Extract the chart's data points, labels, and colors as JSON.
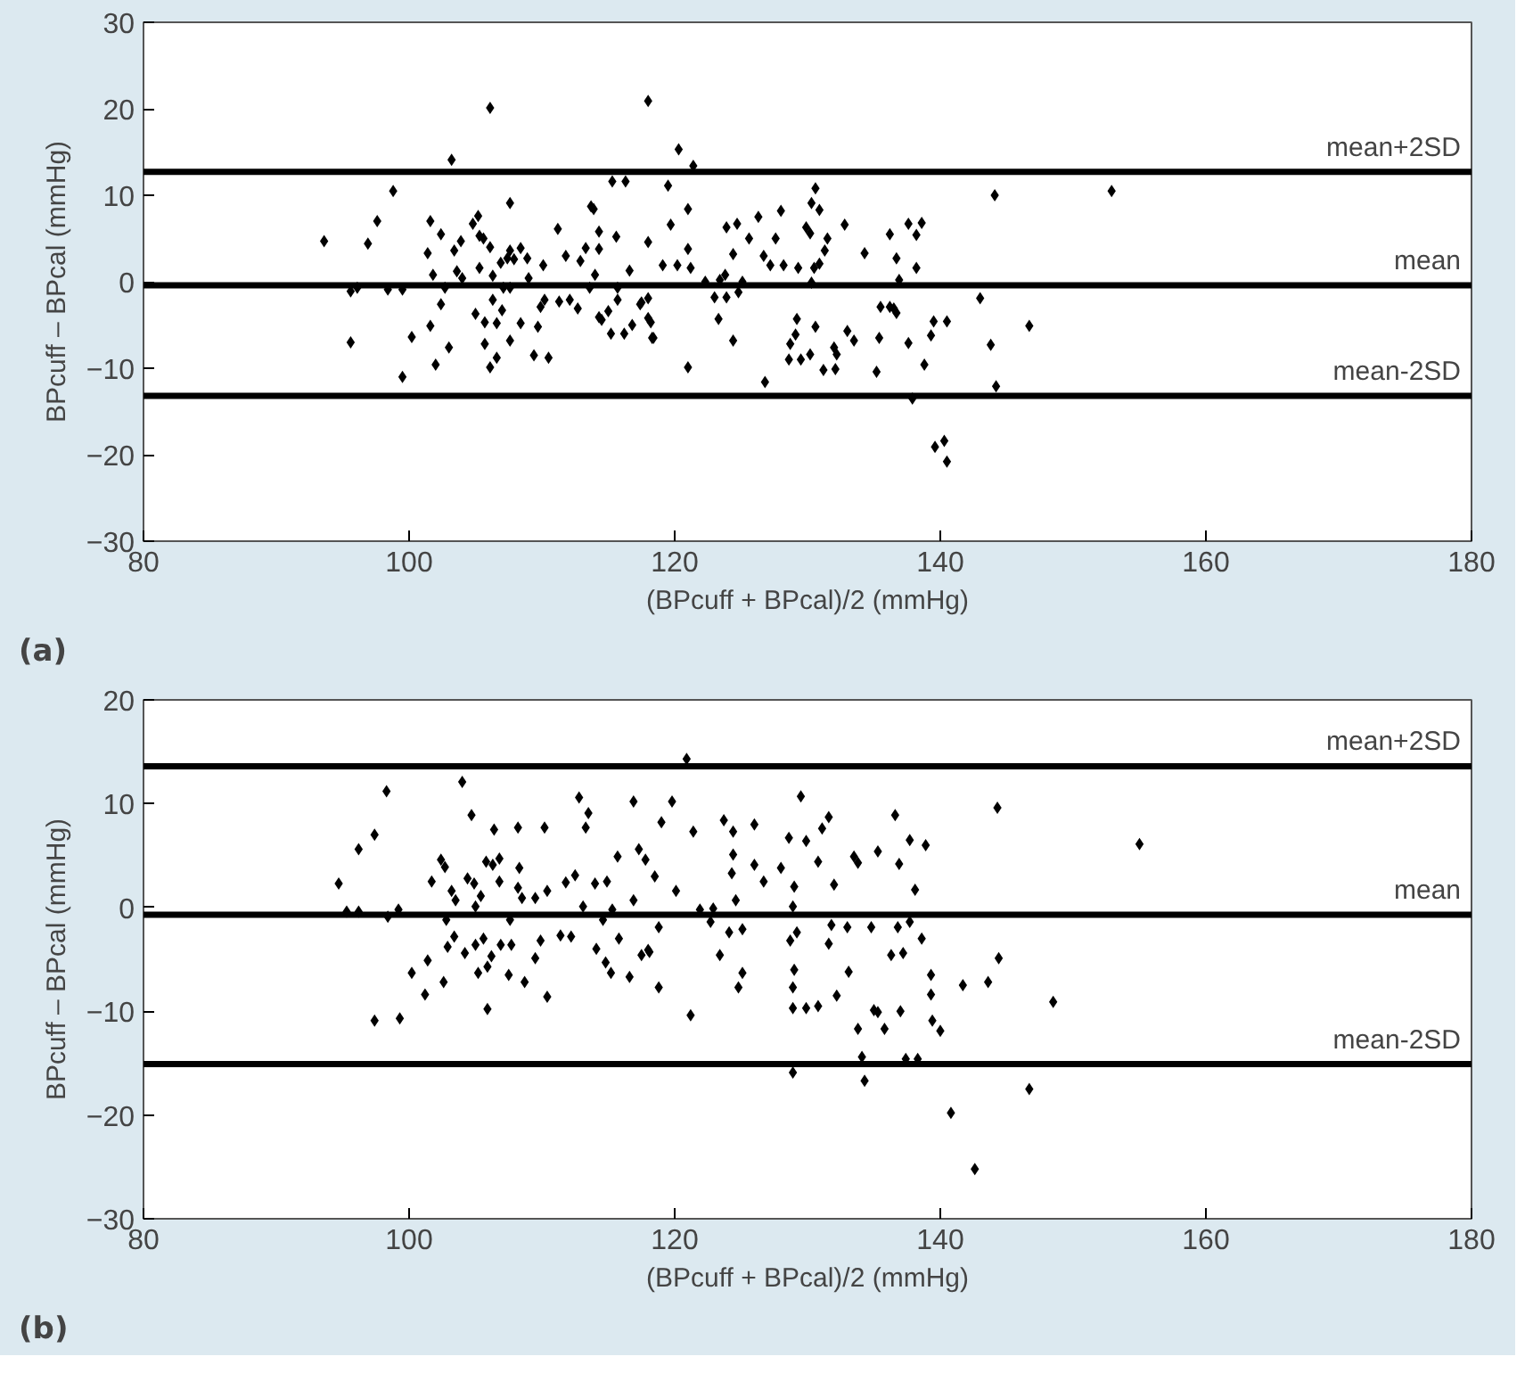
{
  "chart_data": [
    {
      "type": "scatter",
      "xlabel": "(BPcuff + BPcal)/2 (mmHg)",
      "ylabel": "BPcuff – BPcal (mmHg)",
      "annotations": [
        "(a)"
      ],
      "xlim": [
        80,
        180
      ],
      "xticks": [
        80,
        100,
        120,
        140,
        160,
        180
      ],
      "ylim": [
        -30,
        30
      ],
      "yticks": [
        -30,
        -20,
        -10,
        0,
        10,
        20,
        30
      ],
      "grid": false,
      "marker": "diamond",
      "ref_lines": [
        {
          "axis": "y",
          "value": 12.7,
          "label": "mean+2SD",
          "color": "#000000"
        },
        {
          "axis": "y",
          "value": -0.4,
          "label": "mean",
          "color": "#000000"
        },
        {
          "axis": "y",
          "value": -13.2,
          "label": "mean-2SD",
          "color": "#000000"
        }
      ],
      "series": [
        {
          "color": "#000000",
          "x": [
            93.6,
            95.6,
            96.1,
            95.6,
            96.9,
            97.6,
            98.8,
            98.4,
            99.5,
            99.5,
            100.2,
            101.6,
            101.4,
            101.8,
            101.6,
            102.0,
            102.4,
            102.4,
            102.7,
            103.0,
            103.2,
            103.4,
            103.6,
            103.9,
            104.0,
            104.8,
            105.2,
            105.3,
            105.0,
            105.3,
            105.6,
            105.7,
            105.7,
            106.1,
            106.1,
            106.1,
            106.3,
            106.3,
            106.6,
            106.6,
            106.9,
            107.1,
            107.0,
            107.4,
            107.6,
            107.6,
            107.6,
            107.6,
            107.9,
            108.4,
            108.4,
            108.9,
            109.0,
            109.4,
            109.7,
            109.9,
            110.1,
            110.2,
            110.5,
            111.2,
            111.3,
            111.8,
            112.1,
            112.7,
            112.9,
            113.3,
            113.7,
            113.9,
            113.6,
            114.0,
            114.3,
            114.3,
            114.3,
            114.5,
            115.0,
            115.2,
            115.3,
            115.6,
            115.7,
            115.7,
            116.3,
            116.2,
            116.6,
            116.8,
            117.5,
            118.0,
            118.0,
            118.2,
            118.4,
            118.0,
            117.4,
            118.0,
            118.3,
            119.5,
            119.7,
            119.1,
            120.2,
            120.3,
            121.4,
            121.0,
            121.0,
            121.2,
            121.0,
            122.3,
            123.0,
            123.3,
            123.4,
            123.8,
            123.9,
            123.9,
            124.4,
            124.4,
            124.7,
            124.8,
            125.1,
            125.6,
            126.3,
            126.7,
            126.8,
            127.2,
            127.6,
            128.0,
            128.2,
            128.6,
            128.7,
            129.1,
            129.2,
            129.3,
            129.5,
            129.9,
            130.2,
            130.2,
            130.3,
            130.5,
            130.6,
            130.6,
            130.3,
            130.9,
            130.9,
            131.3,
            131.5,
            131.2,
            132.0,
            132.2,
            132.1,
            132.8,
            133.0,
            133.5,
            134.3,
            135.2,
            135.4,
            135.5,
            136.2,
            136.2,
            136.5,
            136.7,
            136.7,
            136.9,
            137.6,
            137.6,
            137.9,
            138.2,
            138.2,
            138.6,
            138.8,
            139.3,
            139.5,
            139.6,
            140.3,
            140.5,
            140.5,
            143.0,
            143.8,
            144.1,
            144.2,
            146.7,
            152.9
          ],
          "values": [
            4.7,
            -1.1,
            -0.7,
            -7.0,
            4.4,
            7.0,
            10.5,
            -0.9,
            -0.9,
            -11.0,
            -6.4,
            7.0,
            3.3,
            0.8,
            -5.1,
            -9.6,
            5.5,
            -2.6,
            -0.7,
            -7.6,
            14.1,
            3.6,
            1.2,
            4.7,
            0.4,
            6.7,
            7.6,
            5.3,
            -3.7,
            1.6,
            5.0,
            -4.7,
            -7.2,
            20.1,
            4.0,
            -9.9,
            0.7,
            -2.1,
            -4.8,
            -8.8,
            2.2,
            -0.7,
            -3.3,
            2.7,
            9.1,
            3.6,
            -0.7,
            -6.8,
            2.6,
            3.9,
            -4.8,
            2.7,
            0.4,
            -8.5,
            -5.2,
            -2.9,
            1.9,
            -2.1,
            -8.8,
            6.1,
            -2.3,
            3.0,
            -2.1,
            -3.1,
            2.4,
            3.9,
            8.7,
            8.4,
            -0.7,
            0.8,
            5.8,
            3.8,
            -4.1,
            -4.4,
            -3.4,
            -6.0,
            11.6,
            5.2,
            -0.7,
            -2.1,
            11.6,
            -6.0,
            1.3,
            -5.0,
            -2.4,
            20.9,
            4.6,
            -4.7,
            -6.5,
            -1.9,
            -2.6,
            -4.2,
            -6.5,
            11.1,
            6.6,
            1.9,
            1.9,
            15.3,
            13.4,
            8.4,
            3.8,
            1.6,
            -9.9,
            0.0,
            -1.8,
            -4.3,
            0.2,
            0.8,
            -1.8,
            6.3,
            3.2,
            -6.8,
            6.7,
            -1.2,
            0.0,
            5.0,
            7.5,
            3.0,
            -11.6,
            1.9,
            5.0,
            8.2,
            1.9,
            -9.0,
            -7.2,
            -6.1,
            -4.3,
            1.6,
            -9.0,
            6.3,
            -8.4,
            5.6,
            -0.1,
            1.6,
            10.8,
            -5.2,
            9.1,
            8.3,
            2.1,
            3.6,
            5.0,
            -10.2,
            -7.6,
            -8.4,
            -10.1,
            6.6,
            -5.7,
            -6.8,
            3.3,
            -10.4,
            -6.5,
            -2.9,
            5.5,
            -2.9,
            -3.1,
            2.7,
            -3.6,
            0.2,
            6.7,
            -7.1,
            -13.5,
            5.4,
            1.6,
            6.8,
            -9.6,
            -6.2,
            -4.6,
            -19.1,
            -18.4,
            -20.8,
            -4.6,
            -1.9,
            -7.3,
            10.0,
            -12.1,
            -5.1,
            10.5
          ]
        }
      ]
    },
    {
      "type": "scatter",
      "xlabel": "(BPcuff + BPcal)/2 (mmHg)",
      "ylabel": "BPcuff – BPcal (mmHg)",
      "annotations": [
        "(b)"
      ],
      "xlim": [
        80,
        180
      ],
      "xticks": [
        80,
        100,
        120,
        140,
        160,
        180
      ],
      "ylim": [
        -30,
        20
      ],
      "yticks": [
        -30,
        -20,
        -10,
        0,
        10,
        20
      ],
      "grid": false,
      "marker": "diamond",
      "ref_lines": [
        {
          "axis": "y",
          "value": 13.6,
          "label": "mean+2SD",
          "color": "#000000"
        },
        {
          "axis": "y",
          "value": -0.7,
          "label": "mean",
          "color": "#000000"
        },
        {
          "axis": "y",
          "value": -15.1,
          "label": "mean-2SD",
          "color": "#000000"
        }
      ],
      "series": [
        {
          "color": "#000000",
          "x": [
            94.7,
            95.3,
            96.2,
            96.2,
            97.4,
            97.4,
            98.3,
            98.4,
            99.2,
            99.3,
            100.2,
            101.2,
            101.4,
            101.7,
            102.4,
            102.6,
            102.7,
            102.8,
            102.9,
            103.2,
            103.4,
            103.5,
            104.0,
            104.2,
            104.4,
            104.7,
            104.9,
            105.0,
            105.0,
            105.2,
            105.4,
            105.6,
            105.8,
            105.9,
            105.9,
            106.2,
            106.3,
            106.4,
            106.8,
            106.8,
            106.9,
            107.5,
            107.6,
            107.7,
            108.2,
            108.2,
            108.3,
            108.5,
            108.7,
            109.5,
            109.5,
            109.9,
            110.2,
            110.4,
            110.4,
            111.4,
            111.8,
            112.2,
            112.5,
            112.8,
            113.1,
            113.3,
            113.5,
            114.0,
            114.1,
            114.6,
            114.8,
            114.9,
            115.2,
            115.3,
            115.7,
            115.8,
            116.6,
            116.9,
            116.9,
            117.3,
            117.5,
            117.8,
            118.1,
            120.9,
            119.8,
            119.0,
            118.5,
            118.8,
            118.8,
            118.0,
            120.1,
            121.2,
            121.4,
            121.9,
            122.7,
            122.9,
            123.4,
            123.7,
            124.1,
            124.3,
            124.4,
            124.4,
            124.6,
            124.8,
            125.1,
            125.1,
            126.0,
            126.0,
            126.7,
            128.0,
            128.6,
            128.7,
            128.9,
            128.9,
            128.9,
            128.9,
            129.0,
            129.2,
            129.0,
            129.5,
            129.9,
            129.9,
            130.8,
            130.8,
            131.1,
            131.6,
            131.6,
            131.8,
            132.0,
            132.2,
            133.0,
            133.1,
            133.5,
            133.8,
            133.8,
            134.1,
            134.3,
            134.8,
            135.0,
            135.3,
            135.3,
            135.8,
            136.3,
            136.6,
            136.8,
            136.9,
            137.0,
            137.2,
            137.4,
            137.7,
            137.7,
            138.1,
            138.3,
            138.6,
            138.9,
            139.3,
            139.3,
            139.4,
            140.0,
            140.8,
            141.7,
            142.6,
            143.6,
            144.3,
            144.4,
            146.7,
            148.5,
            155.0
          ],
          "values": [
            2.3,
            -0.4,
            -0.4,
            5.6,
            7.0,
            -10.9,
            11.2,
            -0.9,
            -0.2,
            -10.7,
            -6.3,
            -8.4,
            -5.1,
            2.5,
            4.6,
            -7.2,
            3.9,
            -1.2,
            -3.8,
            1.6,
            -2.8,
            0.7,
            12.1,
            -4.4,
            2.8,
            8.9,
            2.3,
            0.1,
            -3.6,
            -6.3,
            1.1,
            -3.0,
            4.4,
            -5.7,
            -9.8,
            -4.7,
            4.1,
            7.5,
            4.7,
            2.5,
            -3.6,
            -6.5,
            -1.2,
            -3.6,
            7.7,
            1.9,
            3.8,
            0.9,
            -7.2,
            -4.9,
            0.9,
            -3.2,
            7.7,
            1.6,
            -8.6,
            -2.7,
            2.4,
            -2.8,
            3.1,
            10.6,
            0.1,
            7.7,
            9.1,
            2.3,
            -4.0,
            -1.2,
            -5.3,
            2.5,
            -6.3,
            -0.2,
            4.9,
            -3.0,
            -6.7,
            10.2,
            0.7,
            5.6,
            -4.6,
            4.6,
            -4.3,
            14.3,
            10.2,
            8.2,
            3.0,
            -1.9,
            -7.7,
            -4.1,
            1.6,
            -10.4,
            7.3,
            -0.2,
            -1.4,
            -0.1,
            -4.6,
            8.4,
            -2.4,
            3.3,
            5.1,
            7.3,
            0.7,
            -7.7,
            -2.1,
            -6.3,
            8.0,
            4.1,
            2.5,
            3.8,
            6.7,
            -3.2,
            0.1,
            -7.7,
            -9.7,
            -15.9,
            2.0,
            -2.4,
            -6.0,
            10.7,
            -9.7,
            6.4,
            -9.5,
            4.4,
            7.6,
            8.7,
            -3.5,
            -1.7,
            2.2,
            -8.5,
            -1.9,
            -6.2,
            4.9,
            4.3,
            -11.7,
            -14.4,
            -16.7,
            -1.9,
            -9.9,
            -10.1,
            5.4,
            -11.7,
            -4.6,
            8.9,
            -1.9,
            4.2,
            -10.0,
            -4.4,
            -14.6,
            -1.4,
            6.5,
            1.7,
            -14.6,
            -3.0,
            6.0,
            -6.5,
            -8.4,
            -10.9,
            -11.9,
            -19.8,
            -7.5,
            -25.2,
            -7.2,
            9.6,
            -4.9,
            -17.5,
            -9.1,
            6.1
          ]
        }
      ]
    }
  ]
}
